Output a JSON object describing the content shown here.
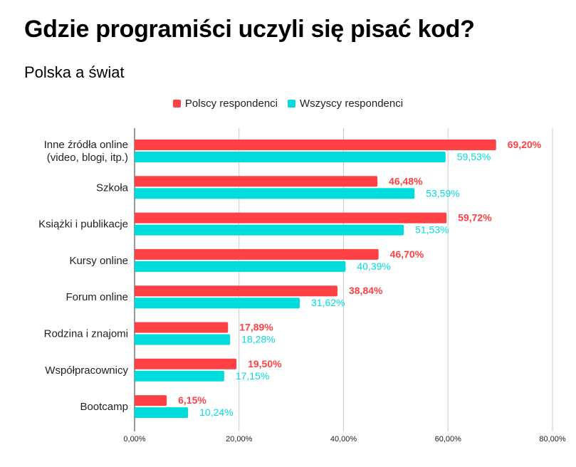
{
  "chart_data": {
    "type": "bar",
    "orientation": "horizontal",
    "title": "Gdzie programiści uczyli się pisać kod?",
    "subtitle": "Polska a świat",
    "xlabel": "",
    "ylabel": "",
    "xlim": [
      0,
      80
    ],
    "x_ticks": [
      0,
      20,
      40,
      60,
      80
    ],
    "x_tick_labels": [
      "0,00%",
      "20,00%",
      "40,00%",
      "60,00%",
      "80,00%"
    ],
    "grid": true,
    "legend_position": "top-center",
    "categories": [
      [
        "Inne źródła online",
        "(video, blogi, itp.)"
      ],
      [
        "Szkoła"
      ],
      [
        "Książki i publikacje"
      ],
      [
        "Kursy online"
      ],
      [
        "Forum online"
      ],
      [
        "Rodzina i znajomi"
      ],
      [
        "Współpracownicy"
      ],
      [
        "Bootcamp"
      ]
    ],
    "series": [
      {
        "name": "Polscy respondenci",
        "color": "#ff4044",
        "values": [
          69.2,
          46.48,
          59.72,
          46.7,
          38.84,
          17.89,
          19.5,
          6.15
        ],
        "labels": [
          "69,20%",
          "46,48%",
          "59,72%",
          "46,70%",
          "38,84%",
          "17,89%",
          "19,50%",
          "6,15%"
        ]
      },
      {
        "name": "Wszyscy respondenci",
        "color": "#00dcdc",
        "values": [
          59.53,
          53.59,
          51.53,
          40.39,
          31.62,
          18.28,
          17.15,
          10.24
        ],
        "labels": [
          "59,53%",
          "53,59%",
          "51,53%",
          "40,39%",
          "31,62%",
          "18,28%",
          "17,15%",
          "10,24%"
        ]
      }
    ]
  }
}
